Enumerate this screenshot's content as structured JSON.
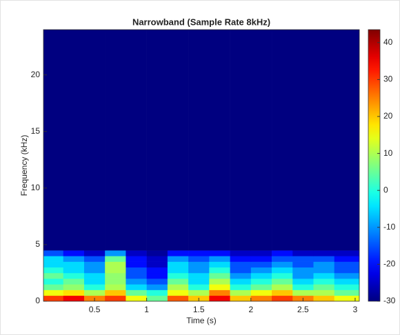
{
  "chart_data": {
    "type": "heatmap",
    "title": "Narrowband (Sample Rate 8kHz)",
    "x_label": "Time (s)",
    "y_label": "Frequency (kHz)",
    "x_edges": [
      0.01,
      0.2,
      0.4,
      0.6,
      0.8,
      1.0,
      1.2,
      1.4,
      1.6,
      1.8,
      2.0,
      2.2,
      2.4,
      2.6,
      2.8,
      3.04
    ],
    "y_edges": [
      0,
      0.5,
      1,
      1.5,
      2,
      2.5,
      3,
      3.5,
      4,
      4.5,
      24
    ],
    "values": [
      [
        30,
        35,
        25,
        30,
        15,
        5,
        28,
        20,
        35,
        20,
        25,
        30,
        25,
        20,
        15
      ],
      [
        15,
        18,
        10,
        20,
        5,
        0,
        15,
        10,
        25,
        10,
        15,
        20,
        10,
        10,
        5
      ],
      [
        5,
        8,
        0,
        10,
        -5,
        -10,
        10,
        0,
        15,
        0,
        5,
        10,
        0,
        5,
        0
      ],
      [
        0,
        5,
        -5,
        8,
        -10,
        -15,
        5,
        -5,
        10,
        -5,
        0,
        5,
        -5,
        0,
        -5
      ],
      [
        5,
        0,
        -5,
        8,
        -15,
        -20,
        0,
        -5,
        5,
        -10,
        -5,
        0,
        -10,
        -5,
        -10
      ],
      [
        0,
        -5,
        -10,
        10,
        -15,
        -20,
        -5,
        -10,
        0,
        -15,
        -10,
        -5,
        -10,
        -10,
        -15
      ],
      [
        -5,
        -5,
        -10,
        10,
        -20,
        -25,
        -5,
        -10,
        -5,
        -15,
        -15,
        -10,
        -15,
        -10,
        -15
      ],
      [
        -5,
        -10,
        -15,
        5,
        -20,
        -25,
        -10,
        -15,
        -10,
        -20,
        -20,
        -15,
        -15,
        -15,
        -20
      ],
      [
        -15,
        -20,
        -25,
        -10,
        -25,
        -28,
        -20,
        -20,
        -20,
        -25,
        -25,
        -20,
        -25,
        -25,
        -25
      ],
      [
        -30,
        -30,
        -30,
        -30,
        -30,
        -30,
        -30,
        -30,
        -30,
        -30,
        -30,
        -30,
        -30,
        -30,
        -30
      ]
    ],
    "xlim": [
      0.01,
      3.04
    ],
    "xticks": [
      0.5,
      1,
      1.5,
      2,
      2.5,
      3
    ],
    "ylim": [
      0,
      24
    ],
    "yticks": [
      0,
      5,
      10,
      15,
      20
    ],
    "clim": [
      -30,
      43.5
    ],
    "cticks": [
      -30,
      -20,
      -10,
      0,
      10,
      20,
      30,
      40
    ],
    "colormap": "jet"
  }
}
